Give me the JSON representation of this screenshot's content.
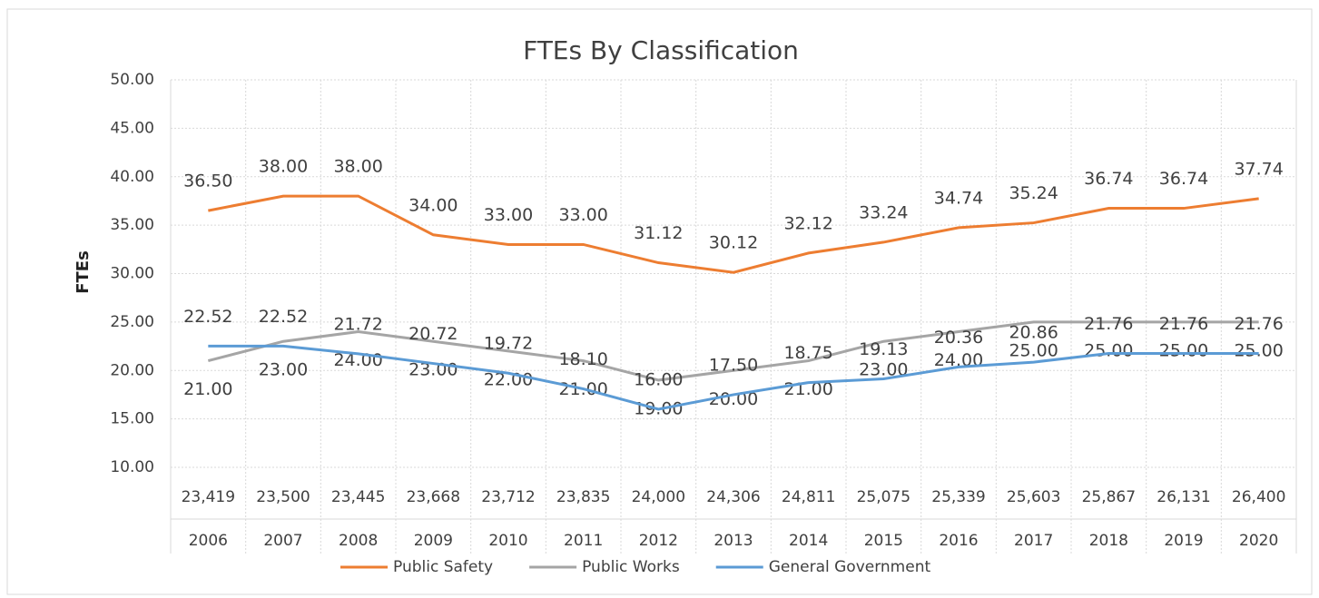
{
  "chart_data": {
    "type": "line",
    "title": "FTEs By Classification",
    "y_label": "FTEs",
    "categories": [
      "2006",
      "2007",
      "2008",
      "2009",
      "2010",
      "2011",
      "2012",
      "2013",
      "2014",
      "2015",
      "2016",
      "2017",
      "2018",
      "2019",
      "2020"
    ],
    "populations": [
      "23,419",
      "23,500",
      "23,445",
      "23,668",
      "23,712",
      "23,835",
      "24,000",
      "24,306",
      "24,811",
      "25,075",
      "25,339",
      "25,603",
      "25,867",
      "26,131",
      "26,400"
    ],
    "series": [
      {
        "name": "Public Safety",
        "color": "#ed7d31",
        "values": [
          36.5,
          38,
          38,
          34,
          33,
          33,
          31.12,
          30.12,
          32.12,
          33.24,
          34.74,
          35.24,
          36.74,
          36.74,
          37.74
        ],
        "value_labels": [
          "36.50",
          "38.00",
          "38.00",
          "34.00",
          "33.00",
          "33.00",
          "31.12",
          "30.12",
          "32.12",
          "33.24",
          "34.74",
          "35.24",
          "36.74",
          "36.74",
          "37.74"
        ]
      },
      {
        "name": "Public Works",
        "color": "#a5a5a5",
        "values": [
          21,
          23,
          24,
          23,
          22,
          21,
          19,
          20,
          21,
          23,
          24,
          25,
          25,
          25,
          25
        ],
        "value_labels": [
          "21.00",
          "23.00",
          "24.00",
          "23.00",
          "22.00",
          "21.00",
          "19.00",
          "20.00",
          "21.00",
          "23.00",
          "24.00",
          "25.00",
          "25.00",
          "25.00",
          "25.00"
        ]
      },
      {
        "name": "General Government",
        "color": "#5b9bd5",
        "values": [
          22.52,
          22.52,
          21.72,
          20.72,
          19.72,
          18.1,
          16,
          17.5,
          18.75,
          19.13,
          20.36,
          20.86,
          21.76,
          21.76,
          21.76
        ],
        "value_labels": [
          "22.52",
          "22.52",
          "21.72",
          "20.72",
          "19.72",
          "18.10",
          "16.00",
          "17.50",
          "18.75",
          "19.13",
          "20.36",
          "20.86",
          "21.76",
          "21.76",
          "21.76"
        ]
      }
    ],
    "ylim": [
      10,
      50
    ],
    "yticks": [
      {
        "value": 10,
        "label": "10.00"
      },
      {
        "value": 15,
        "label": "15.00"
      },
      {
        "value": 20,
        "label": "20.00"
      },
      {
        "value": 25,
        "label": "25.00"
      },
      {
        "value": 30,
        "label": "30.00"
      },
      {
        "value": 35,
        "label": "35.00"
      },
      {
        "value": 40,
        "label": "40.00"
      },
      {
        "value": 45,
        "label": "45.00"
      },
      {
        "value": 50,
        "label": "50.00"
      }
    ],
    "grid": true,
    "legend": "bottom"
  }
}
